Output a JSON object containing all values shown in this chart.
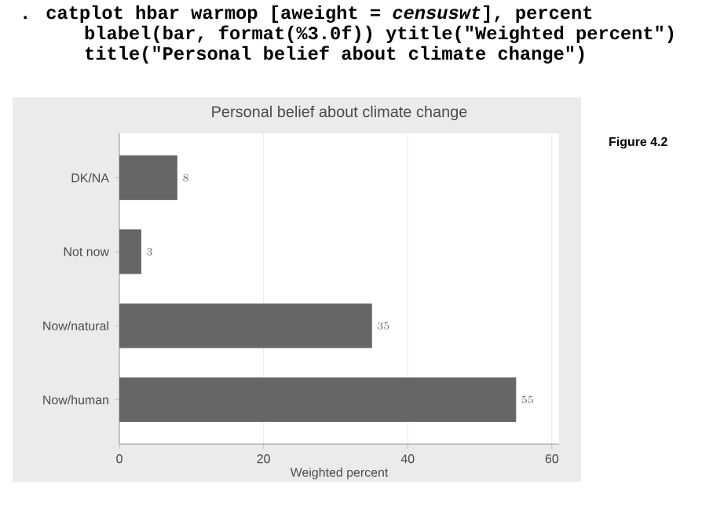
{
  "chart_data": {
    "type": "bar",
    "orientation": "horizontal",
    "title": "Personal belief about climate change",
    "xlabel": "Weighted percent",
    "categories": [
      "DK/NA",
      "Not now",
      "Now/natural",
      "Now/human"
    ],
    "values": [
      8,
      3,
      35,
      55
    ],
    "color": "#666666",
    "data_labels": true,
    "xlim": [
      0,
      61
    ],
    "xticks": [
      0,
      20,
      40,
      60
    ],
    "grid": "x",
    "annotations": [
      ". catplot hbar warmop [aweight = *censuswt*], percent",
      "blabel(bar, format(%3.0f)) ytitle(\"Weighted percent\")",
      "title(\"Personal belief about climate change\")",
      "Figure 4.2"
    ]
  }
}
